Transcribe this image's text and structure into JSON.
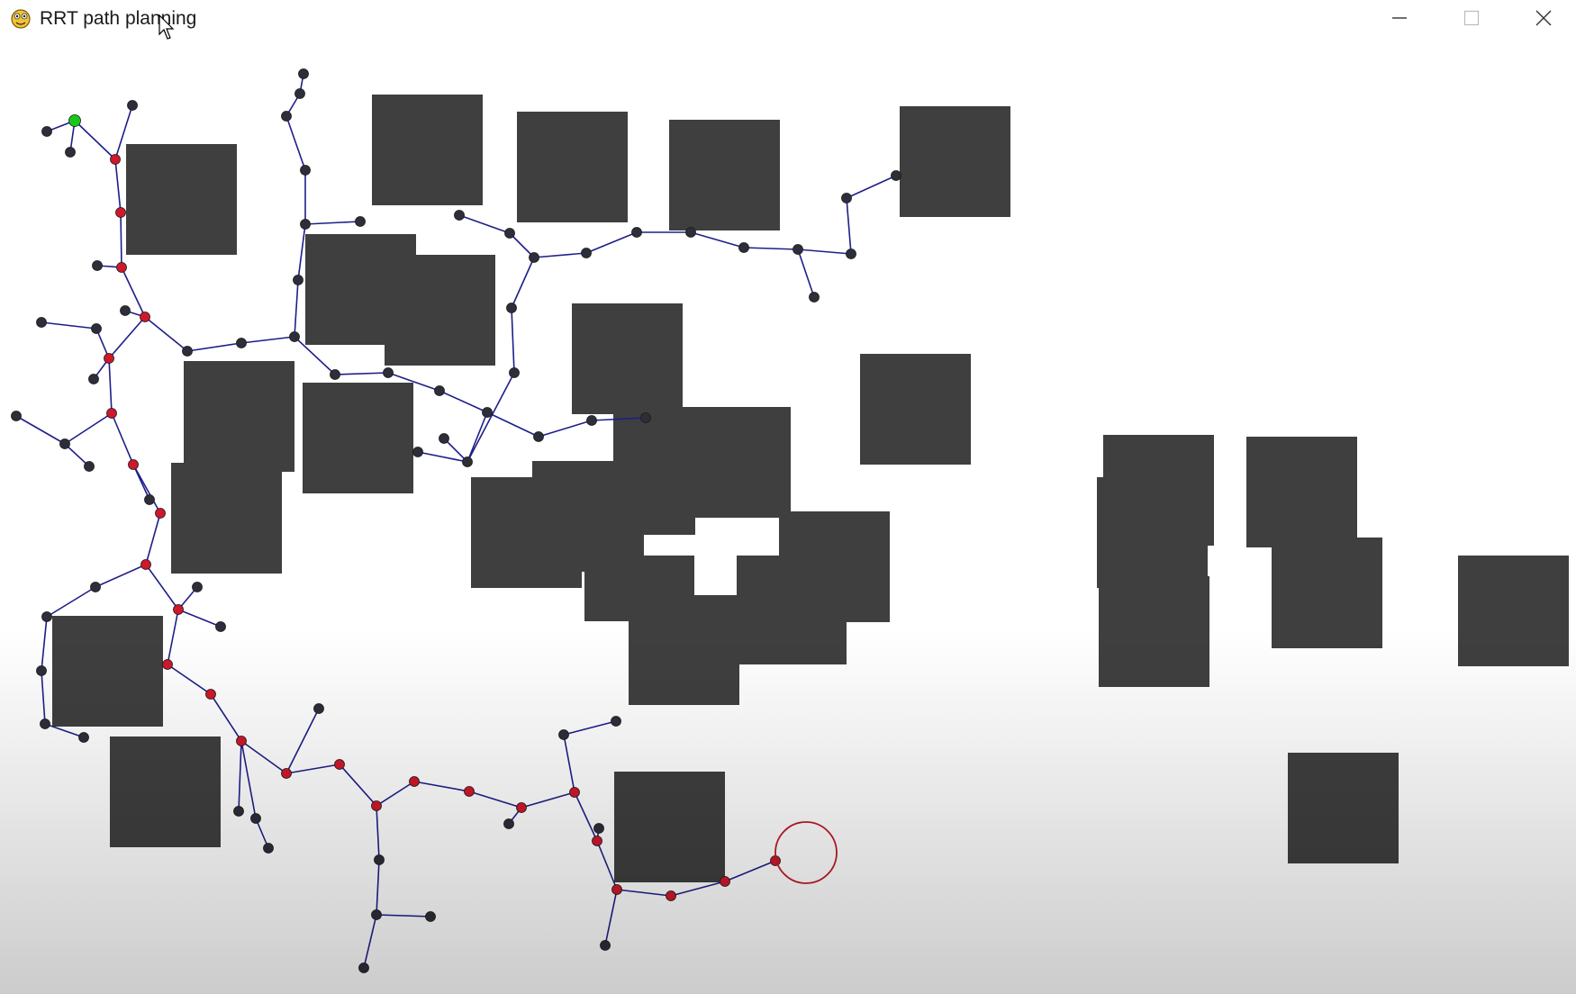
{
  "window": {
    "title": "RRT path planning",
    "app_icon": "pygame-snake-icon",
    "controls": {
      "minimize_icon": "minimize-icon",
      "maximize_icon": "maximize-icon",
      "close_icon": "close-icon"
    }
  },
  "colors": {
    "background": "#ffffff",
    "obstacle": "#3f3f3f",
    "edge": "#1e1e8a",
    "node": "#2e2e3a",
    "path_node": "#d0182a",
    "start_node": "#18c818",
    "goal_circle": "#c01a2a"
  }
}
